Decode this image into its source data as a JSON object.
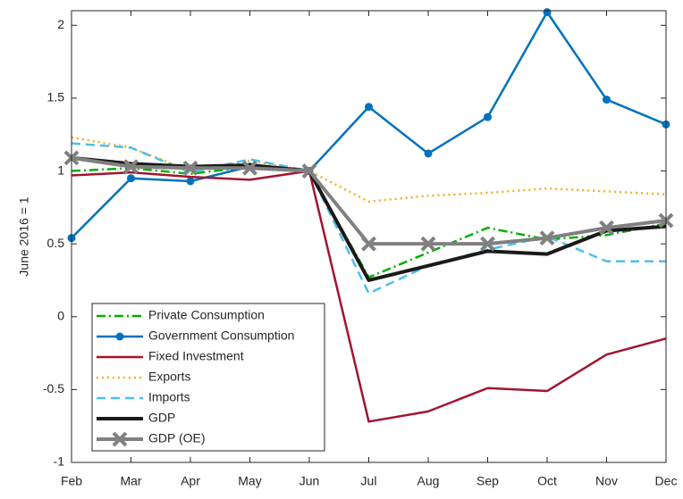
{
  "chart_data": {
    "type": "line",
    "ylabel": "June 2016 = 1",
    "categories": [
      "Feb",
      "Mar",
      "Apr",
      "May",
      "Jun",
      "Jul",
      "Aug",
      "Sep",
      "Oct",
      "Nov",
      "Dec"
    ],
    "ylim": [
      -1,
      2.1
    ],
    "yticks": [
      -1,
      -0.5,
      0,
      0.5,
      1,
      1.5,
      2
    ],
    "legend": "lower-left",
    "series": [
      {
        "name": "Private Consumption",
        "color": "#00b000",
        "dash": "dashdot",
        "marker": "none",
        "width": 2.5,
        "values": [
          1.0,
          1.02,
          0.98,
          1.03,
          1.0,
          0.27,
          0.44,
          0.61,
          0.53,
          0.56,
          0.64
        ]
      },
      {
        "name": "Government Consumption",
        "color": "#0072bd",
        "dash": "solid",
        "marker": "circle",
        "width": 2.5,
        "values": [
          0.54,
          0.95,
          0.93,
          1.03,
          1.0,
          1.44,
          1.12,
          1.37,
          2.09,
          1.49,
          1.32
        ]
      },
      {
        "name": "Fixed Investment",
        "color": "#a2142f",
        "dash": "solid",
        "marker": "none",
        "width": 2.5,
        "values": [
          0.97,
          0.99,
          0.96,
          0.94,
          1.0,
          -0.72,
          -0.65,
          -0.49,
          -0.51,
          -0.26,
          -0.15
        ]
      },
      {
        "name": "Exports",
        "color": "#edb120",
        "dash": "dotted",
        "marker": "none",
        "width": 2.5,
        "values": [
          1.23,
          1.16,
          1.0,
          1.07,
          1.0,
          0.79,
          0.83,
          0.85,
          0.88,
          0.86,
          0.84
        ]
      },
      {
        "name": "Imports",
        "color": "#4dbeee",
        "dash": "dashed",
        "marker": "none",
        "width": 2.5,
        "values": [
          1.19,
          1.16,
          0.99,
          1.08,
          1.0,
          0.16,
          0.35,
          0.46,
          0.55,
          0.38,
          0.38
        ]
      },
      {
        "name": "GDP",
        "color": "#1a1a1a",
        "dash": "solid",
        "marker": "none",
        "width": 4,
        "values": [
          1.09,
          1.05,
          1.03,
          1.04,
          1.0,
          0.25,
          0.35,
          0.45,
          0.43,
          0.59,
          0.62
        ]
      },
      {
        "name": "GDP (OE)",
        "color": "#808080",
        "dash": "solid",
        "marker": "x",
        "width": 4,
        "values": [
          1.09,
          1.03,
          1.02,
          1.02,
          1.0,
          0.5,
          0.5,
          0.5,
          0.54,
          0.61,
          0.66
        ]
      }
    ]
  }
}
